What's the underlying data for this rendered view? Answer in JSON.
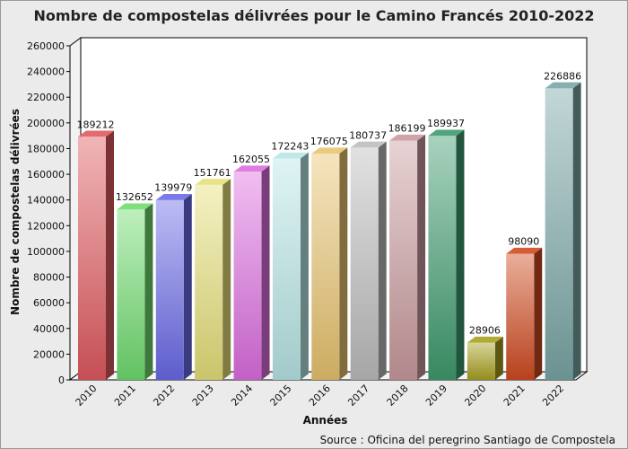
{
  "chart_data": {
    "type": "bar",
    "title": "Nombre de compostelas délivrées pour le Camino Francés 2010-2022",
    "xlabel": "Années",
    "ylabel": "Nombre de compostelas délivrées",
    "source": "Source : Oficina del peregrino Santiago de Compostela",
    "ylim": [
      0,
      260000
    ],
    "yticks": [
      0,
      20000,
      40000,
      60000,
      80000,
      100000,
      120000,
      140000,
      160000,
      180000,
      200000,
      220000,
      240000,
      260000
    ],
    "grid": false,
    "categories": [
      "2010",
      "2011",
      "2012",
      "2013",
      "2014",
      "2015",
      "2016",
      "2017",
      "2018",
      "2019",
      "2020",
      "2021",
      "2022"
    ],
    "values": [
      189212,
      132652,
      139979,
      151761,
      162055,
      172243,
      176075,
      180737,
      186199,
      189937,
      28906,
      98090,
      226886
    ],
    "colors": [
      "#e05a60",
      "#6fdc6f",
      "#6a6ae8",
      "#e6e07a",
      "#dd6ee0",
      "#b8e6e6",
      "#e8c46e",
      "#bdbdbd",
      "#c99a9e",
      "#3e9a6e",
      "#a8a020",
      "#d04a20",
      "#7aa6a6"
    ]
  }
}
